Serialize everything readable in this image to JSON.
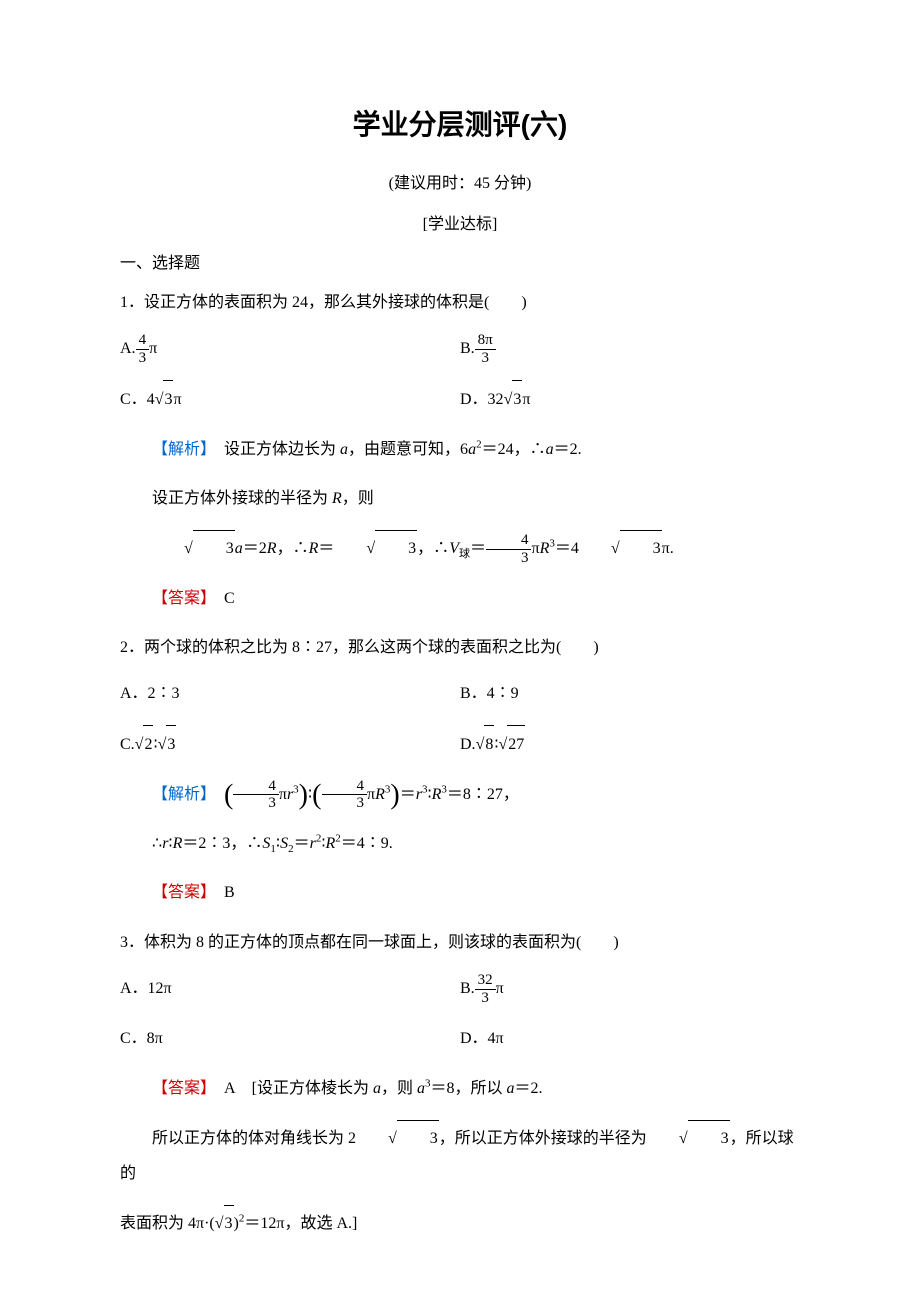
{
  "page": {
    "title": "学业分层测评(六)",
    "subtitle": "(建议用时：45 分钟)",
    "section_label": "[学业达标]",
    "heading": "一、选择题",
    "colors": {
      "text": "#000000",
      "analysis_label": "#0066cc",
      "answer_label": "#cc0000",
      "background": "#ffffff"
    },
    "fonts": {
      "title_size": 28,
      "body_size": 16,
      "title_family": "SimHei",
      "body_family": "SimSun",
      "kai_family": "KaiTi"
    }
  },
  "labels": {
    "analysis": "【解析】",
    "answer": "【答案】"
  },
  "q1": {
    "stem": "1．设正方体的表面积为 24，那么其外接球的体积是(　　)",
    "optA_prefix": "A.",
    "optA_num": "4",
    "optA_den": "3",
    "optA_suffix": "π",
    "optB_prefix": "B.",
    "optB_num": "8π",
    "optB_den": "3",
    "optC": "C．4√3π",
    "optC_text": "C．4",
    "optC_sqrt": "3",
    "optC_suffix": "π",
    "optD_text": "D．32",
    "optD_sqrt": "3",
    "optD_suffix": "π",
    "analysis1_a": "设正方体边长为 ",
    "analysis1_var": "a",
    "analysis1_b": "，由题意可知，6",
    "analysis1_c": "a",
    "analysis1_sup": "2",
    "analysis1_d": "＝24，∴",
    "analysis1_e": "a",
    "analysis1_f": "＝2.",
    "analysis2_a": "设正方体外接球的半径为 ",
    "analysis2_var": "R",
    "analysis2_b": "，则",
    "analysis3_sqrt": "3",
    "analysis3_a": "a",
    "analysis3_b": "＝2",
    "analysis3_c": "R",
    "analysis3_d": "，∴",
    "analysis3_e": "R",
    "analysis3_f": "＝",
    "analysis3_sqrt2": "3",
    "analysis3_g": "，∴",
    "analysis3_vol": "V",
    "analysis3_sub": "球",
    "analysis3_h": "＝",
    "analysis3_num": "4",
    "analysis3_den": "3",
    "analysis3_i": "π",
    "analysis3_j": "R",
    "analysis3_sup": "3",
    "analysis3_k": "＝4",
    "analysis3_sqrt3": "3",
    "analysis3_l": "π.",
    "answer": "C"
  },
  "q2": {
    "stem": "2．两个球的体积之比为 8∶27，那么这两个球的表面积之比为(　　)",
    "optA": "A．2∶3",
    "optB": "B．4∶9",
    "optC_a": "C.",
    "optC_sqrt1": "2",
    "optC_sep": "∶",
    "optC_sqrt2": "3",
    "optD_a": "D.",
    "optD_sqrt1": "8",
    "optD_sep": "∶",
    "optD_sqrt2": "27",
    "analysis_num1": "4",
    "analysis_den1": "3",
    "analysis_a": "π",
    "analysis_r": "r",
    "analysis_sup3": "3",
    "analysis_sep": "∶",
    "analysis_num2": "4",
    "analysis_den2": "3",
    "analysis_R": "R",
    "analysis_eq": "＝",
    "analysis_result": "8∶27，",
    "line2_a": "∴",
    "line2_r": "r",
    "line2_sep": "∶",
    "line2_R": "R",
    "line2_b": "＝2∶3，∴",
    "line2_S1": "S",
    "line2_sub1": "1",
    "line2_S2": "S",
    "line2_sub2": "2",
    "line2_c": "＝",
    "line2_d": "＝4∶9.",
    "line2_sup2": "2",
    "answer": "B"
  },
  "q3": {
    "stem": "3．体积为 8 的正方体的顶点都在同一球面上，则该球的表面积为(　　)",
    "optA": "A．12π",
    "optB_prefix": "B.",
    "optB_num": "32",
    "optB_den": "3",
    "optB_suffix": "π",
    "optC": "C．8π",
    "optD": "D．4π",
    "answer_text": "A",
    "answer_a": "[设正方体棱长为 ",
    "answer_var": "a",
    "answer_b": "，则 ",
    "answer_c": "a",
    "answer_sup": "3",
    "answer_d": "＝8，所以 ",
    "answer_e": "a",
    "answer_f": "＝2.",
    "line2_a": "所以正方体的体对角线长为 2",
    "line2_sqrt": "3",
    "line2_b": "，所以正方体外接球的半径为",
    "line2_sqrt2": "3",
    "line2_c": "，所以球的",
    "line3_a": "表面积为 4π·(",
    "line3_sqrt": "3",
    "line3_b": ")",
    "line3_sup": "2",
    "line3_c": "＝12π，故选 A.]"
  }
}
